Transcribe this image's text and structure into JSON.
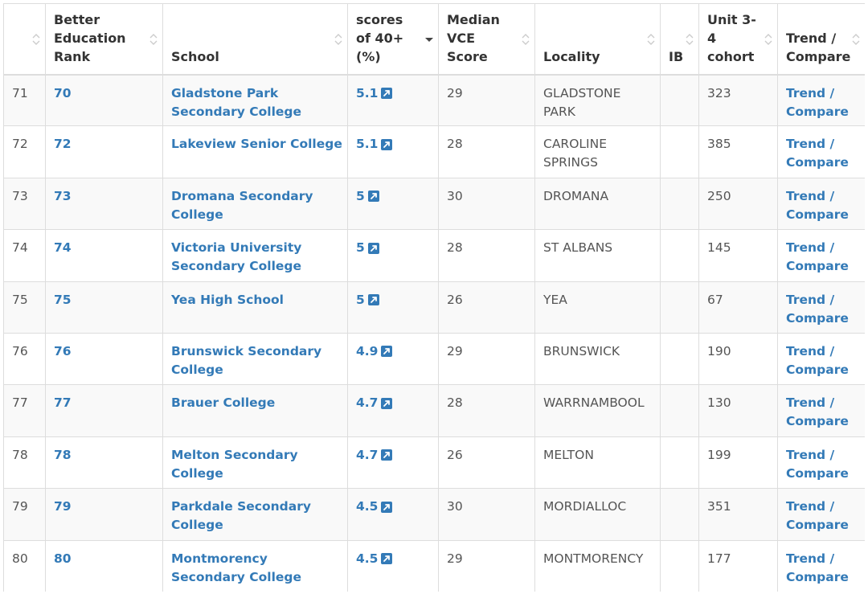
{
  "table": {
    "headers": {
      "idx": "",
      "rank": "Better Education Rank",
      "school": "School",
      "scores": "scores of 40+ (%)",
      "median": "Median VCE Score",
      "locality": "Locality",
      "ib": "IB",
      "cohort": "Unit 3-4 cohort",
      "trend": "Trend / Compare"
    },
    "rows": [
      {
        "idx": "71",
        "rank": "70",
        "school": "Gladstone Park Secondary College",
        "score": "5.1",
        "median": "29",
        "locality": "GLADSTONE PARK",
        "ib": "",
        "cohort": "323",
        "trend": "Trend / Compare"
      },
      {
        "idx": "72",
        "rank": "72",
        "school": "Lakeview Senior College",
        "score": "5.1",
        "median": "28",
        "locality": "CAROLINE SPRINGS",
        "ib": "",
        "cohort": "385",
        "trend": "Trend / Compare"
      },
      {
        "idx": "73",
        "rank": "73",
        "school": "Dromana Secondary College",
        "score": "5",
        "median": "30",
        "locality": "DROMANA",
        "ib": "",
        "cohort": "250",
        "trend": "Trend / Compare"
      },
      {
        "idx": "74",
        "rank": "74",
        "school": "Victoria University Secondary College",
        "score": "5",
        "median": "28",
        "locality": "ST ALBANS",
        "ib": "",
        "cohort": "145",
        "trend": "Trend / Compare"
      },
      {
        "idx": "75",
        "rank": "75",
        "school": "Yea High School",
        "score": "5",
        "median": "26",
        "locality": "YEA",
        "ib": "",
        "cohort": "67",
        "trend": "Trend / Compare"
      },
      {
        "idx": "76",
        "rank": "76",
        "school": "Brunswick Secondary College",
        "score": "4.9",
        "median": "29",
        "locality": "BRUNSWICK",
        "ib": "",
        "cohort": "190",
        "trend": "Trend / Compare"
      },
      {
        "idx": "77",
        "rank": "77",
        "school": "Brauer College",
        "score": "4.7",
        "median": "28",
        "locality": "WARRNAMBOOL",
        "ib": "",
        "cohort": "130",
        "trend": "Trend / Compare"
      },
      {
        "idx": "78",
        "rank": "78",
        "school": "Melton Secondary College",
        "score": "4.7",
        "median": "26",
        "locality": "MELTON",
        "ib": "",
        "cohort": "199",
        "trend": "Trend / Compare"
      },
      {
        "idx": "79",
        "rank": "79",
        "school": "Parkdale Secondary College",
        "score": "4.5",
        "median": "30",
        "locality": "MORDIALLOC",
        "ib": "",
        "cohort": "351",
        "trend": "Trend / Compare"
      },
      {
        "idx": "80",
        "rank": "80",
        "school": "Montmorency Secondary College",
        "score": "4.5",
        "median": "29",
        "locality": "MONTMORENCY",
        "ib": "",
        "cohort": "177",
        "trend": "Trend / Compare"
      }
    ],
    "sort": {
      "column": "scores",
      "direction": "descending"
    },
    "icons": {
      "sortable": "sort-both-icon",
      "sorted": "sort-desc-icon",
      "external": "external-link-icon"
    },
    "colors": {
      "link": "#337ab7",
      "text": "#555555",
      "header_text": "#333333",
      "border": "#dddddd",
      "stripe": "#f9f9f9",
      "sort_icon": "#cccccc"
    }
  }
}
